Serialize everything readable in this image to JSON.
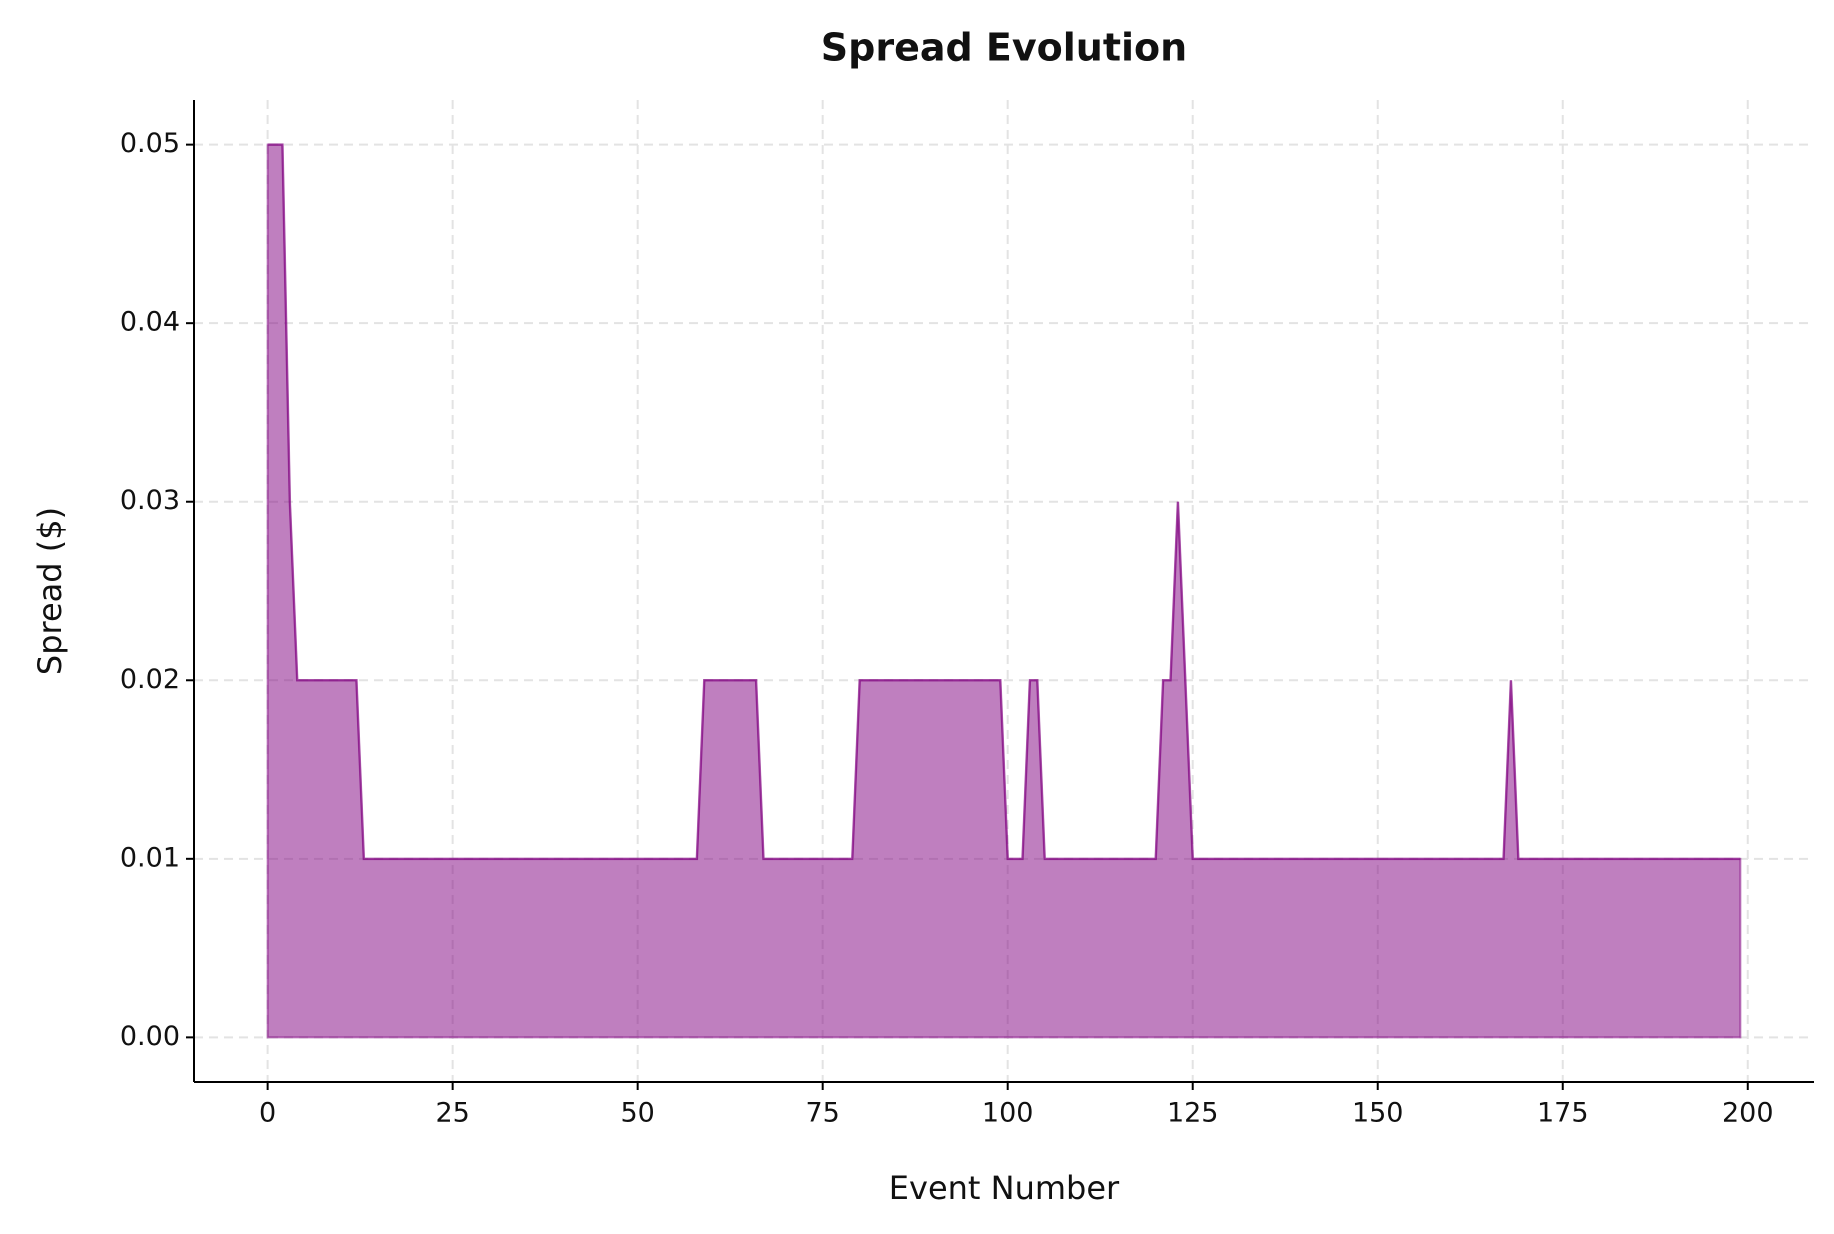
{
  "chart_data": {
    "type": "area",
    "title": "Spread Evolution",
    "xlabel": "Event Number",
    "ylabel": "Spread ($)",
    "x": [
      0,
      1,
      2,
      3,
      4,
      5,
      6,
      7,
      8,
      9,
      10,
      11,
      12,
      13,
      14,
      15,
      16,
      17,
      18,
      19,
      20,
      21,
      22,
      23,
      24,
      25,
      26,
      27,
      28,
      29,
      30,
      31,
      32,
      33,
      34,
      35,
      36,
      37,
      38,
      39,
      40,
      41,
      42,
      43,
      44,
      45,
      46,
      47,
      48,
      49,
      50,
      51,
      52,
      53,
      54,
      55,
      56,
      57,
      58,
      59,
      60,
      61,
      62,
      63,
      64,
      65,
      66,
      67,
      68,
      69,
      70,
      71,
      72,
      73,
      74,
      75,
      76,
      77,
      78,
      79,
      80,
      81,
      82,
      83,
      84,
      85,
      86,
      87,
      88,
      89,
      90,
      91,
      92,
      93,
      94,
      95,
      96,
      97,
      98,
      99,
      100,
      101,
      102,
      103,
      104,
      105,
      106,
      107,
      108,
      109,
      110,
      111,
      112,
      113,
      114,
      115,
      116,
      117,
      118,
      119,
      120,
      121,
      122,
      123,
      124,
      125,
      126,
      127,
      128,
      129,
      130,
      131,
      132,
      133,
      134,
      135,
      136,
      137,
      138,
      139,
      140,
      141,
      142,
      143,
      144,
      145,
      146,
      147,
      148,
      149,
      150,
      151,
      152,
      153,
      154,
      155,
      156,
      157,
      158,
      159,
      160,
      161,
      162,
      163,
      164,
      165,
      166,
      167,
      168,
      169,
      170,
      171,
      172,
      173,
      174,
      175,
      176,
      177,
      178,
      179,
      180,
      181,
      182,
      183,
      184,
      185,
      186,
      187,
      188,
      189,
      190,
      191,
      192,
      193,
      194,
      195,
      196,
      197,
      198,
      199
    ],
    "values": [
      0.05,
      0.05,
      0.05,
      0.03,
      0.02,
      0.02,
      0.02,
      0.02,
      0.02,
      0.02,
      0.02,
      0.02,
      0.02,
      0.01,
      0.01,
      0.01,
      0.01,
      0.01,
      0.01,
      0.01,
      0.01,
      0.01,
      0.01,
      0.01,
      0.01,
      0.01,
      0.01,
      0.01,
      0.01,
      0.01,
      0.01,
      0.01,
      0.01,
      0.01,
      0.01,
      0.01,
      0.01,
      0.01,
      0.01,
      0.01,
      0.01,
      0.01,
      0.01,
      0.01,
      0.01,
      0.01,
      0.01,
      0.01,
      0.01,
      0.01,
      0.01,
      0.01,
      0.01,
      0.01,
      0.01,
      0.01,
      0.01,
      0.01,
      0.01,
      0.02,
      0.02,
      0.02,
      0.02,
      0.02,
      0.02,
      0.02,
      0.02,
      0.01,
      0.01,
      0.01,
      0.01,
      0.01,
      0.01,
      0.01,
      0.01,
      0.01,
      0.01,
      0.01,
      0.01,
      0.01,
      0.02,
      0.02,
      0.02,
      0.02,
      0.02,
      0.02,
      0.02,
      0.02,
      0.02,
      0.02,
      0.02,
      0.02,
      0.02,
      0.02,
      0.02,
      0.02,
      0.02,
      0.02,
      0.02,
      0.02,
      0.01,
      0.01,
      0.01,
      0.02,
      0.02,
      0.01,
      0.01,
      0.01,
      0.01,
      0.01,
      0.01,
      0.01,
      0.01,
      0.01,
      0.01,
      0.01,
      0.01,
      0.01,
      0.01,
      0.01,
      0.01,
      0.02,
      0.02,
      0.03,
      0.02,
      0.01,
      0.01,
      0.01,
      0.01,
      0.01,
      0.01,
      0.01,
      0.01,
      0.01,
      0.01,
      0.01,
      0.01,
      0.01,
      0.01,
      0.01,
      0.01,
      0.01,
      0.01,
      0.01,
      0.01,
      0.01,
      0.01,
      0.01,
      0.01,
      0.01,
      0.01,
      0.01,
      0.01,
      0.01,
      0.01,
      0.01,
      0.01,
      0.01,
      0.01,
      0.01,
      0.01,
      0.01,
      0.01,
      0.01,
      0.01,
      0.01,
      0.01,
      0.01,
      0.02,
      0.01,
      0.01,
      0.01,
      0.01,
      0.01,
      0.01,
      0.01,
      0.01,
      0.01,
      0.01,
      0.01,
      0.01,
      0.01,
      0.01,
      0.01,
      0.01,
      0.01,
      0.01,
      0.01,
      0.01,
      0.01,
      0.01,
      0.01,
      0.01,
      0.01,
      0.01,
      0.01,
      0.01,
      0.01,
      0.01,
      0.01
    ],
    "color": "#800080",
    "fill_opacity": 0.5,
    "xlim": [
      -9.95,
      208.95
    ],
    "ylim": [
      -0.0025,
      0.0525
    ],
    "xticks": [
      0,
      25,
      50,
      75,
      100,
      125,
      150,
      175,
      200
    ],
    "yticks": [
      {
        "value": 0,
        "label": "0.00"
      },
      0.01,
      0.02,
      0.03,
      0.04,
      0.05
    ],
    "grid": true
  }
}
